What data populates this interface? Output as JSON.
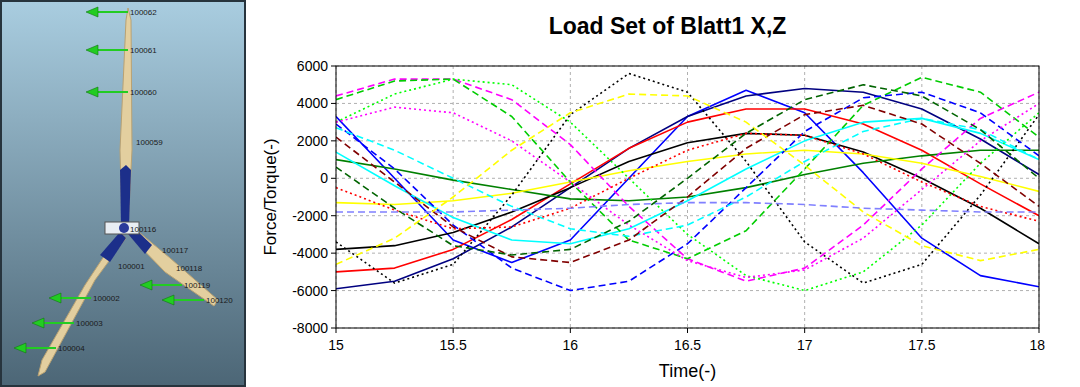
{
  "chart_data": {
    "type": "line",
    "title": "Load Set of Blatt1 X,Z",
    "x_label": "Time(-)",
    "y_label": "Force/Torque(-)",
    "x": [
      15,
      15.25,
      15.5,
      15.75,
      16,
      16.25,
      16.5,
      16.75,
      17,
      17.25,
      17.5,
      17.75,
      18
    ],
    "xlim": [
      15,
      18
    ],
    "xticks": [
      15,
      15.5,
      16,
      16.5,
      17,
      17.5,
      18
    ],
    "ylim": [
      -8000,
      6000
    ],
    "yticks": [
      -8000,
      -6000,
      -4000,
      -2000,
      0,
      2000,
      4000,
      6000
    ],
    "grid": true,
    "series": [
      {
        "color": "#0000ff",
        "line_style": "solid",
        "values": [
          3300,
          0,
          -3300,
          -4500,
          -3300,
          0,
          3300,
          4700,
          3500,
          300,
          -3200,
          -5200,
          -5800
        ]
      },
      {
        "color": "#000080",
        "line_style": "solid",
        "values": [
          -5900,
          -5500,
          -4300,
          -2600,
          -500,
          1600,
          3300,
          4400,
          4800,
          4600,
          3700,
          2100,
          200
        ]
      },
      {
        "color": "#ff0000",
        "line_style": "solid",
        "values": [
          -5000,
          -4800,
          -3800,
          -2200,
          -300,
          1600,
          3000,
          3700,
          3700,
          2900,
          1500,
          -300,
          -2000
        ]
      },
      {
        "color": "#000000",
        "line_style": "solid",
        "values": [
          -3800,
          -3600,
          -2900,
          -1800,
          -500,
          900,
          1900,
          2400,
          2300,
          1400,
          0,
          -1600,
          -3500
        ]
      },
      {
        "color": "#008000",
        "line_style": "solid",
        "values": [
          1000,
          500,
          -100,
          -600,
          -1100,
          -1200,
          -1000,
          -500,
          200,
          800,
          1200,
          1500,
          1500
        ]
      },
      {
        "color": "#ffff00",
        "line_style": "solid",
        "values": [
          -1300,
          -1400,
          -1200,
          -800,
          -200,
          400,
          900,
          1300,
          1500,
          1300,
          800,
          100,
          -700
        ]
      },
      {
        "color": "#00ffff",
        "line_style": "solid",
        "values": [
          1400,
          -400,
          -2100,
          -3300,
          -3500,
          -2700,
          -1200,
          500,
          2000,
          3000,
          3200,
          2400,
          1000
        ]
      },
      {
        "color": "#000000",
        "line_style": "dotted",
        "values": [
          -3400,
          -5600,
          -4600,
          -900,
          3400,
          5600,
          4600,
          900,
          -3400,
          -5600,
          -4600,
          -900,
          3400
        ]
      },
      {
        "color": "#ff00ff",
        "line_style": "dashed",
        "values": [
          4400,
          5300,
          5300,
          4200,
          1800,
          -1500,
          -4300,
          -5500,
          -4800,
          -2500,
          500,
          3200,
          4600
        ]
      },
      {
        "color": "#00cc00",
        "line_style": "dashed",
        "values": [
          4200,
          5200,
          5300,
          3300,
          -200,
          -3300,
          -4300,
          -2800,
          500,
          3900,
          5400,
          4600,
          2200
        ]
      },
      {
        "color": "#00ff00",
        "line_style": "dotted",
        "values": [
          3000,
          4500,
          5300,
          5000,
          3000,
          0,
          -3000,
          -5200,
          -6000,
          -5000,
          -2500,
          800,
          3500
        ]
      },
      {
        "color": "#0000ff",
        "line_style": "dashed",
        "values": [
          2900,
          500,
          -2500,
          -4800,
          -6000,
          -5500,
          -3500,
          -500,
          2500,
          4300,
          4600,
          3500,
          1200
        ]
      },
      {
        "color": "#00ffff",
        "line_style": "dashed",
        "values": [
          2700,
          1500,
          0,
          -1500,
          -2700,
          -3100,
          -2500,
          -1000,
          900,
          2500,
          3200,
          2600,
          1000
        ]
      },
      {
        "color": "#800000",
        "line_style": "dashed",
        "values": [
          2200,
          -200,
          -2600,
          -4200,
          -4500,
          -3300,
          -1000,
          1600,
          3400,
          3900,
          2900,
          800,
          -1500
        ]
      },
      {
        "color": "#ff0000",
        "line_style": "dotted",
        "values": [
          -500,
          -1700,
          -2700,
          -2600,
          -1600,
          0,
          1500,
          2400,
          2300,
          1300,
          -200,
          -1500,
          -2300
        ]
      },
      {
        "color": "#ff00ff",
        "line_style": "dotted",
        "values": [
          3000,
          3800,
          3500,
          2000,
          -200,
          -2500,
          -4400,
          -5300,
          -4900,
          -3200,
          -600,
          2000,
          4000
        ]
      },
      {
        "color": "#ffff00",
        "line_style": "dashed",
        "values": [
          -4600,
          -3200,
          -1000,
          1500,
          3500,
          4500,
          4400,
          3000,
          700,
          -1800,
          -3600,
          -4400,
          -3800
        ]
      },
      {
        "color": "#006400",
        "line_style": "dashed",
        "values": [
          600,
          -1600,
          -3600,
          -4100,
          -3800,
          -2300,
          0,
          2400,
          4200,
          5000,
          4400,
          2600,
          0
        ]
      },
      {
        "color": "#8080ff",
        "line_style": "dashed",
        "values": [
          -1800,
          -1800,
          -1800,
          -1700,
          -1600,
          -1400,
          -1300,
          -1300,
          -1400,
          -1600,
          -1700,
          -1800,
          -1800
        ]
      }
    ]
  },
  "diagram": {
    "nodes": [
      {
        "label": "100062"
      },
      {
        "label": "100061"
      },
      {
        "label": "100060"
      },
      {
        "label": "100059"
      },
      {
        "label": "100116"
      },
      {
        "label": "100117"
      },
      {
        "label": "100118"
      },
      {
        "label": "100119"
      },
      {
        "label": "100120"
      },
      {
        "label": "100001"
      },
      {
        "label": "100002"
      },
      {
        "label": "100003"
      },
      {
        "label": "100004"
      }
    ]
  }
}
